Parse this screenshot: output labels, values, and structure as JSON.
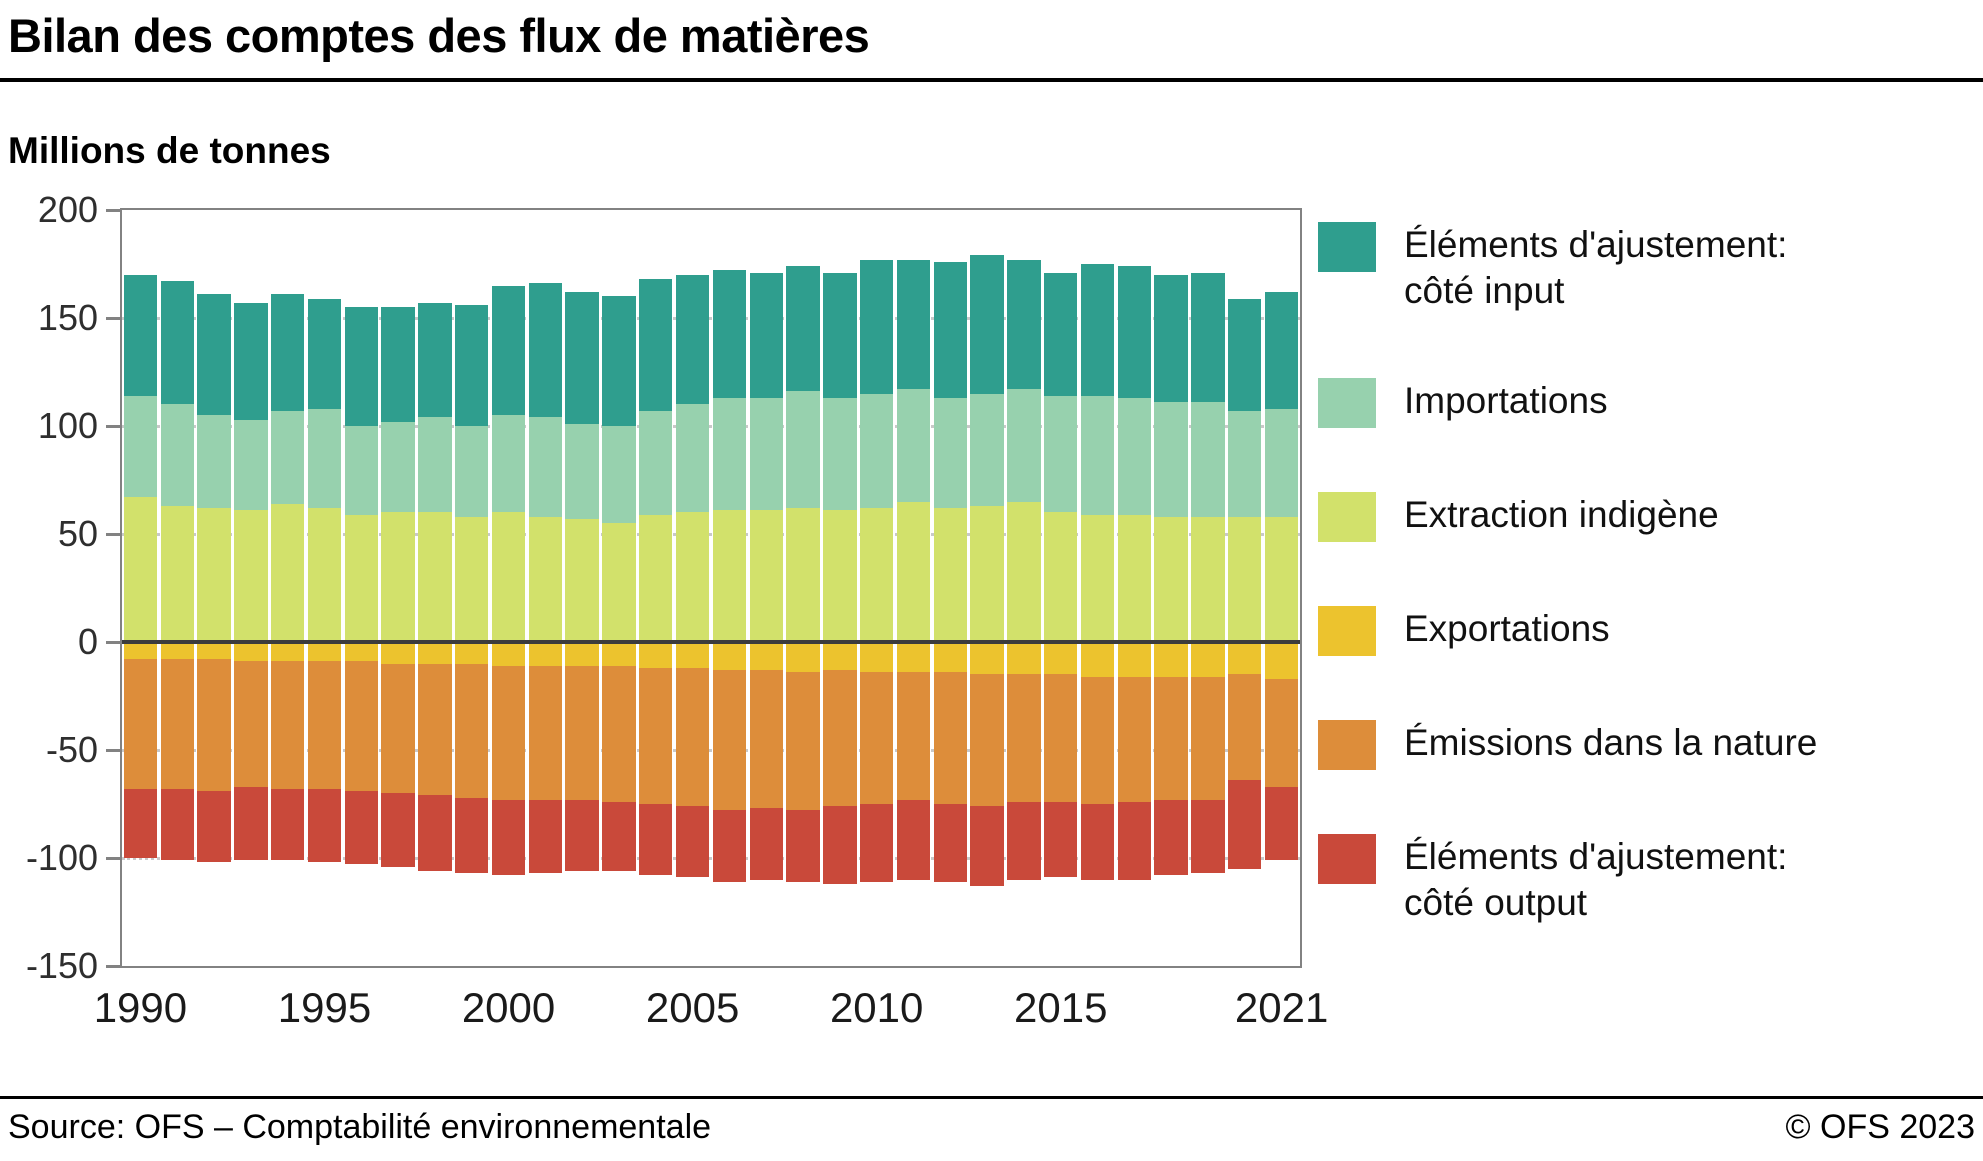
{
  "page": {
    "title": "Bilan des comptes des flux de matières",
    "unit_label": "Millions de tonnes",
    "source": "Source: OFS – Comptabilité environnementale",
    "copyright": "© OFS 2023"
  },
  "chart_data": {
    "type": "bar",
    "variant": "diverging-stacked",
    "title": "Bilan des comptes des flux de matières",
    "ylabel": "Millions de tonnes",
    "ylim": [
      -150,
      200
    ],
    "yticks": [
      200,
      150,
      100,
      50,
      0,
      -50,
      -100,
      -150
    ],
    "grid": "dotted-horizontal",
    "legend_position": "right",
    "years": [
      1990,
      1991,
      1992,
      1993,
      1994,
      1995,
      1996,
      1997,
      1998,
      1999,
      2000,
      2001,
      2002,
      2003,
      2004,
      2005,
      2006,
      2007,
      2008,
      2009,
      2010,
      2011,
      2012,
      2013,
      2014,
      2015,
      2016,
      2017,
      2018,
      2019,
      2020,
      2021
    ],
    "xtick_years": [
      1990,
      1995,
      2000,
      2005,
      2010,
      2015,
      2021
    ],
    "series": [
      {
        "name": "Éléments d'ajustement: côté input",
        "legend_lines": [
          "Éléments d'ajustement:",
          "côté input"
        ],
        "color": "#2f9e8e",
        "stack": "positive",
        "order": 2,
        "values": [
          56,
          57,
          56,
          54,
          54,
          51,
          55,
          53,
          53,
          56,
          60,
          62,
          61,
          60,
          61,
          60,
          59,
          58,
          58,
          58,
          62,
          60,
          63,
          64,
          60,
          57,
          61,
          61,
          59,
          60,
          52,
          54
        ]
      },
      {
        "name": "Importations",
        "legend_lines": [
          "Importations"
        ],
        "color": "#97d1ae",
        "stack": "positive",
        "order": 1,
        "values": [
          47,
          47,
          43,
          42,
          43,
          46,
          41,
          42,
          44,
          42,
          45,
          46,
          44,
          45,
          48,
          50,
          52,
          52,
          54,
          52,
          53,
          52,
          51,
          52,
          52,
          54,
          55,
          54,
          53,
          53,
          49,
          50
        ]
      },
      {
        "name": "Extraction indigène",
        "legend_lines": [
          "Extraction indigène"
        ],
        "color": "#d2e16b",
        "stack": "positive",
        "order": 0,
        "values": [
          67,
          63,
          62,
          61,
          64,
          62,
          59,
          60,
          60,
          58,
          60,
          58,
          57,
          55,
          59,
          60,
          61,
          61,
          62,
          61,
          62,
          65,
          62,
          63,
          65,
          60,
          59,
          59,
          58,
          58,
          58,
          58
        ]
      },
      {
        "name": "Exportations",
        "legend_lines": [
          "Exportations"
        ],
        "color": "#ecc32e",
        "stack": "negative",
        "order": 0,
        "values": [
          8,
          8,
          8,
          9,
          9,
          9,
          9,
          10,
          10,
          10,
          11,
          11,
          11,
          11,
          12,
          12,
          13,
          13,
          14,
          13,
          14,
          14,
          14,
          15,
          15,
          15,
          16,
          16,
          16,
          16,
          15,
          17
        ]
      },
      {
        "name": "Émissions dans la nature",
        "legend_lines": [
          "Émissions dans la nature"
        ],
        "color": "#dd8d3a",
        "stack": "negative",
        "order": 1,
        "values": [
          60,
          60,
          61,
          58,
          59,
          59,
          60,
          60,
          61,
          62,
          62,
          62,
          62,
          63,
          63,
          64,
          65,
          64,
          64,
          63,
          61,
          59,
          61,
          61,
          59,
          59,
          59,
          58,
          57,
          57,
          49,
          50
        ]
      },
      {
        "name": "Éléments d'ajustement: côté output",
        "legend_lines": [
          "Éléments d'ajustement:",
          "côté output"
        ],
        "color": "#c9493a",
        "stack": "negative",
        "order": 2,
        "values": [
          32,
          33,
          33,
          34,
          33,
          34,
          34,
          34,
          35,
          35,
          35,
          34,
          33,
          32,
          33,
          33,
          33,
          33,
          33,
          36,
          36,
          37,
          36,
          37,
          36,
          35,
          35,
          36,
          35,
          34,
          41,
          34
        ]
      }
    ]
  }
}
